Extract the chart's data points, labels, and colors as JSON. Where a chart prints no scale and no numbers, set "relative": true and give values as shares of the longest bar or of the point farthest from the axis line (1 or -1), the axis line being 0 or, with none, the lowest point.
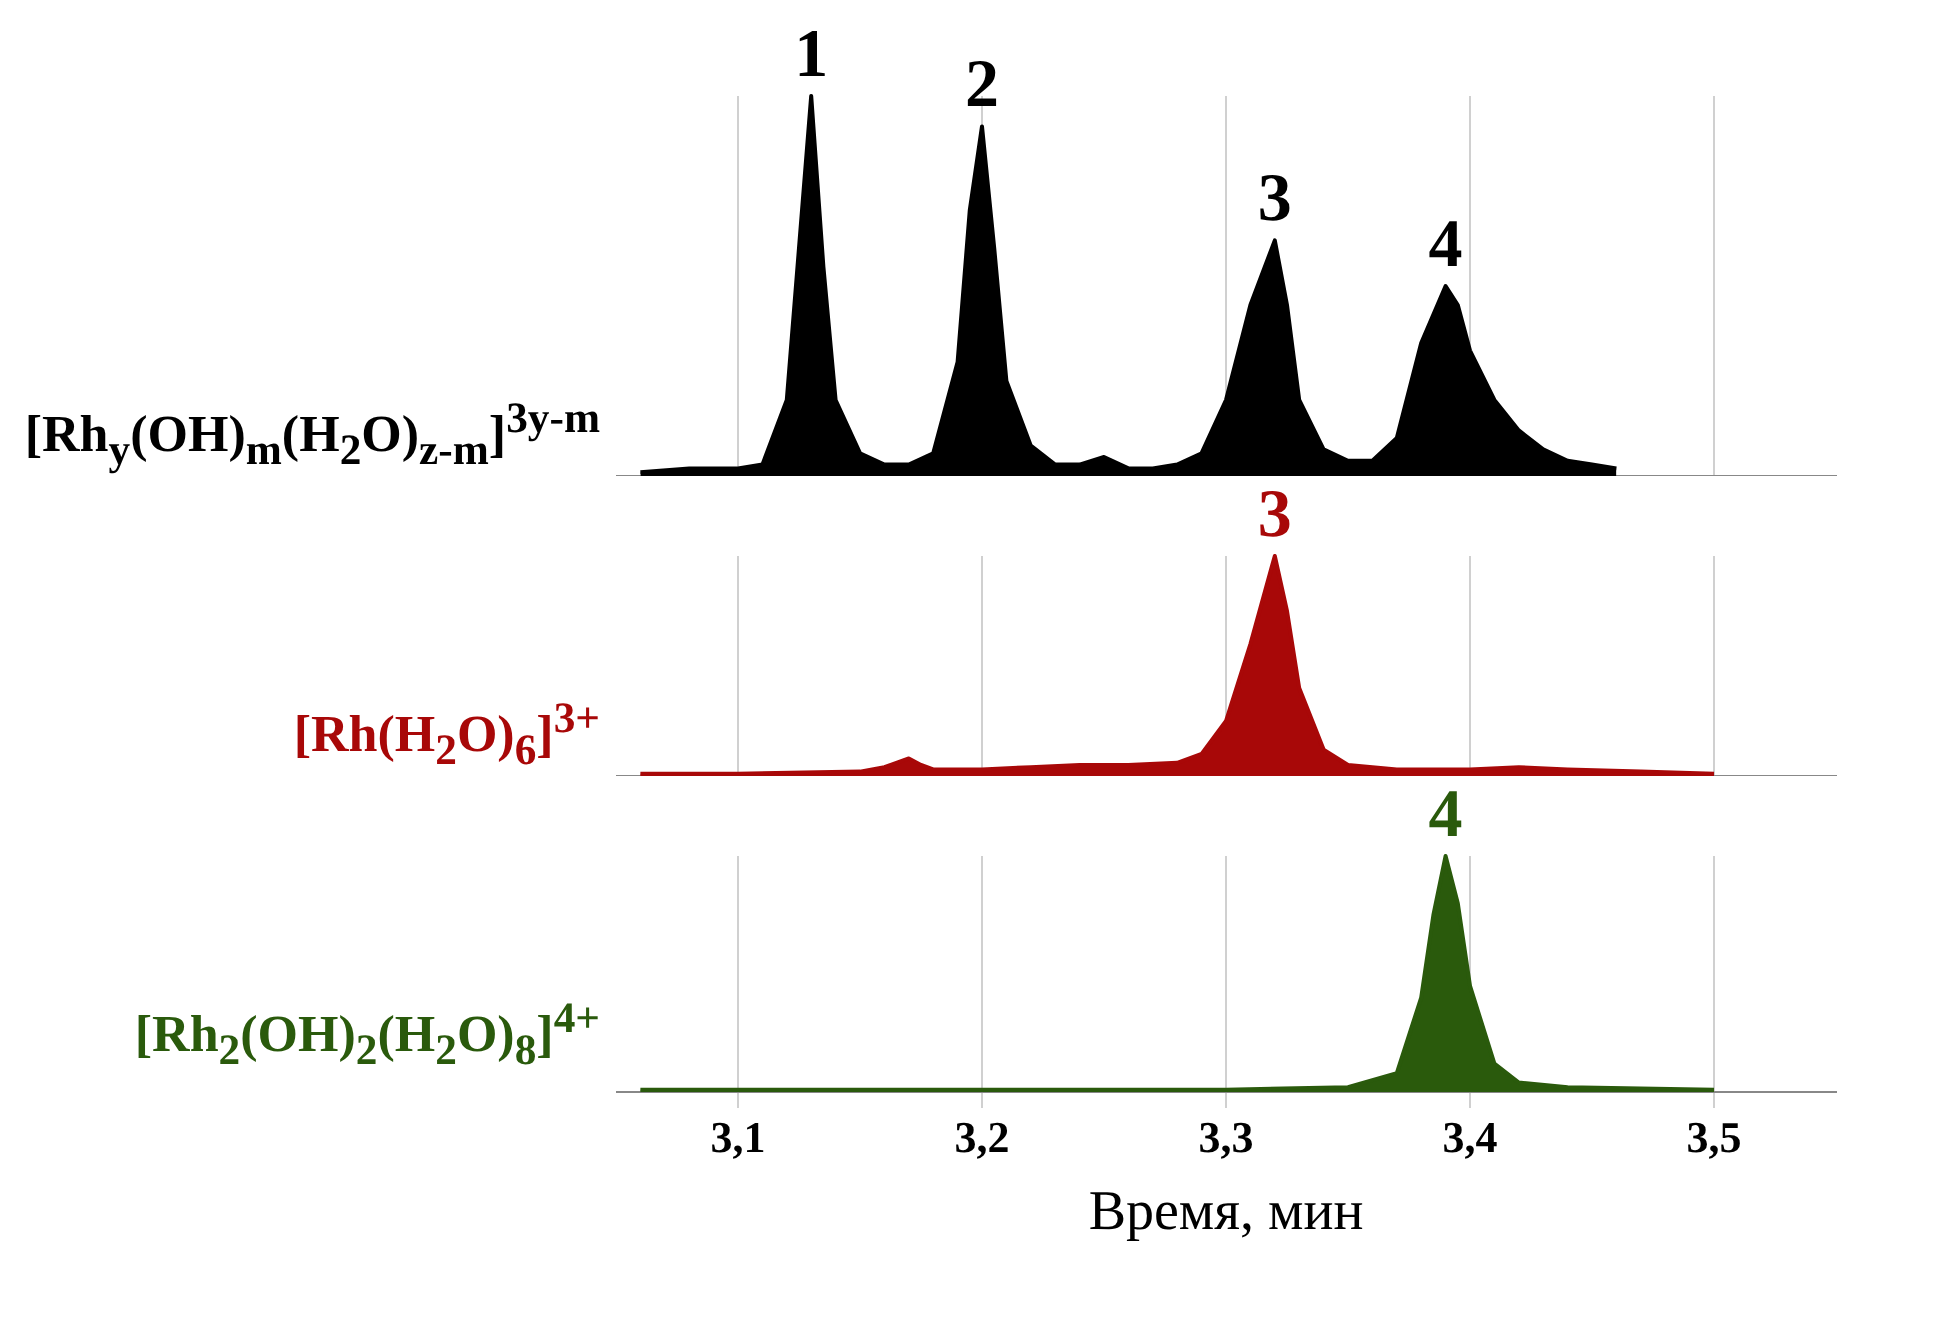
{
  "chart_data": [
    {
      "type": "area",
      "relative": true,
      "xlim": [
        3.05,
        3.55
      ],
      "tick_labels": false,
      "grid": "x",
      "xticks": [
        {
          "value": 3.1,
          "label": null
        },
        {
          "value": 3.2,
          "label": null
        },
        {
          "value": 3.3,
          "label": null
        },
        {
          "value": 3.4,
          "label": null
        },
        {
          "value": 3.5,
          "label": null
        }
      ],
      "series": [
        {
          "name": "[Rh$_{y}$(OH)$_{m}$(H$_{2}$O)$_{z-m}$]$^{3y-m}$",
          "color": "#000000",
          "x": [
            3.06,
            3.08,
            3.1,
            3.11,
            3.12,
            3.125,
            3.13,
            3.135,
            3.14,
            3.15,
            3.16,
            3.17,
            3.18,
            3.19,
            3.195,
            3.2,
            3.205,
            3.21,
            3.22,
            3.23,
            3.24,
            3.25,
            3.26,
            3.27,
            3.28,
            3.29,
            3.3,
            3.31,
            3.32,
            3.325,
            3.33,
            3.34,
            3.35,
            3.36,
            3.37,
            3.38,
            3.39,
            3.395,
            3.4,
            3.41,
            3.42,
            3.43,
            3.44,
            3.45,
            3.46
          ],
          "values": [
            0.01,
            0.02,
            0.02,
            0.03,
            0.2,
            0.6,
            1.0,
            0.55,
            0.2,
            0.06,
            0.03,
            0.03,
            0.06,
            0.3,
            0.7,
            0.92,
            0.6,
            0.25,
            0.08,
            0.03,
            0.03,
            0.05,
            0.02,
            0.02,
            0.03,
            0.06,
            0.2,
            0.45,
            0.62,
            0.45,
            0.2,
            0.07,
            0.04,
            0.04,
            0.1,
            0.35,
            0.5,
            0.45,
            0.33,
            0.2,
            0.12,
            0.07,
            0.04,
            0.03,
            0.02
          ]
        }
      ],
      "annotations": [
        {
          "text": "1",
          "x": 3.13,
          "y": 1.0
        },
        {
          "text": "2",
          "x": 3.2,
          "y": 0.92
        },
        {
          "text": "3",
          "x": 3.32,
          "y": 0.62
        },
        {
          "text": "4",
          "x": 3.39,
          "y": 0.5
        }
      ]
    },
    {
      "type": "area",
      "relative": true,
      "xlim": [
        3.05,
        3.55
      ],
      "tick_labels": false,
      "grid": "x",
      "xticks": [
        {
          "value": 3.1,
          "label": null
        },
        {
          "value": 3.2,
          "label": null
        },
        {
          "value": 3.3,
          "label": null
        },
        {
          "value": 3.4,
          "label": null
        },
        {
          "value": 3.5,
          "label": null
        }
      ],
      "series": [
        {
          "name": "[Rh(H$_{2}$O)$_{6}$]$^{3+}$",
          "color": "#a80808",
          "x": [
            3.06,
            3.1,
            3.15,
            3.16,
            3.17,
            3.175,
            3.18,
            3.2,
            3.22,
            3.24,
            3.26,
            3.28,
            3.29,
            3.3,
            3.31,
            3.32,
            3.325,
            3.33,
            3.34,
            3.35,
            3.37,
            3.4,
            3.42,
            3.44,
            3.47,
            3.5
          ],
          "values": [
            0.01,
            0.01,
            0.02,
            0.04,
            0.08,
            0.05,
            0.03,
            0.03,
            0.04,
            0.05,
            0.05,
            0.06,
            0.1,
            0.25,
            0.6,
            1.0,
            0.75,
            0.4,
            0.12,
            0.05,
            0.03,
            0.03,
            0.04,
            0.03,
            0.02,
            0.01
          ]
        }
      ],
      "annotations": [
        {
          "text": "3",
          "x": 3.32,
          "y": 1.0
        }
      ]
    },
    {
      "type": "area",
      "relative": true,
      "xlim": [
        3.05,
        3.55
      ],
      "grid": "x",
      "xlabel": "Время, мин",
      "xticks": [
        {
          "value": 3.1,
          "label": "3,1"
        },
        {
          "value": 3.2,
          "label": "3,2"
        },
        {
          "value": 3.3,
          "label": "3,3"
        },
        {
          "value": 3.4,
          "label": "3,4"
        },
        {
          "value": 3.5,
          "label": "3,5"
        }
      ],
      "series": [
        {
          "name": "[Rh$_{2}$(OH)$_{2}$(H$_{2}$O)$_{8}$]$^{4+}$",
          "color": "#2a5a0c",
          "x": [
            3.06,
            3.2,
            3.3,
            3.35,
            3.37,
            3.38,
            3.385,
            3.39,
            3.395,
            3.4,
            3.41,
            3.42,
            3.44,
            3.5
          ],
          "values": [
            0.01,
            0.01,
            0.01,
            0.02,
            0.08,
            0.4,
            0.75,
            1.0,
            0.8,
            0.45,
            0.12,
            0.04,
            0.02,
            0.01
          ]
        }
      ],
      "annotations": [
        {
          "text": "4",
          "x": 3.39,
          "y": 1.0
        }
      ]
    }
  ]
}
